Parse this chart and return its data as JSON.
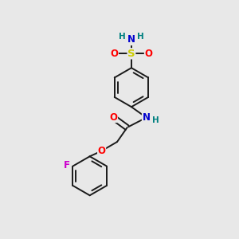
{
  "bg_color": "#e8e8e8",
  "bond_color": "#1a1a1a",
  "bond_width": 1.4,
  "atom_colors": {
    "O": "#ff0000",
    "N": "#0000cd",
    "S": "#cccc00",
    "F": "#cc00cc",
    "H": "#008080",
    "C": "#1a1a1a"
  },
  "font_size": 8.5,
  "figsize": [
    3.0,
    3.0
  ],
  "dpi": 100,
  "xlim": [
    0,
    10
  ],
  "ylim": [
    0,
    10
  ]
}
